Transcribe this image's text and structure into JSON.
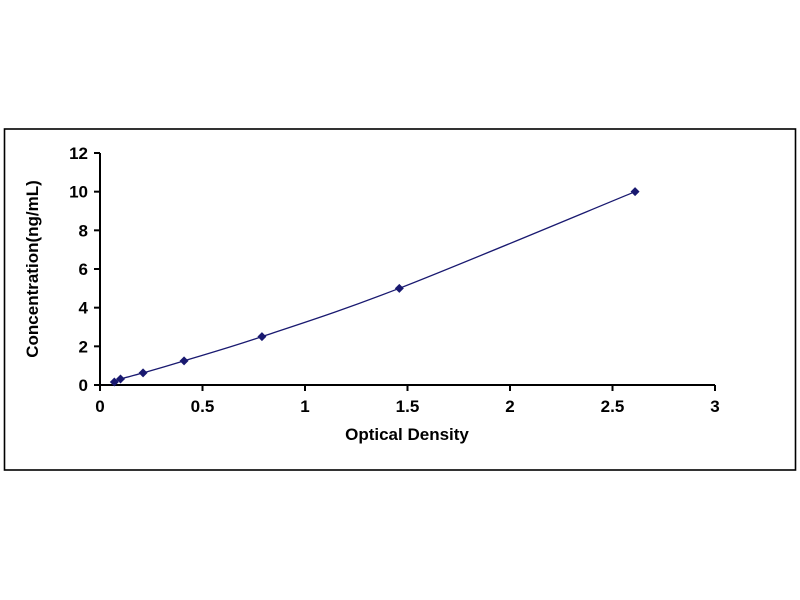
{
  "chart_data": {
    "type": "line",
    "title": "",
    "xlabel": "Optical Density",
    "ylabel": "Concentration(ng/mL)",
    "xlim": [
      0,
      3
    ],
    "ylim": [
      0,
      12
    ],
    "x_ticks": [
      "0",
      "0.5",
      "1",
      "1.5",
      "2",
      "2.5",
      "3"
    ],
    "x_tick_values": [
      0,
      0.5,
      1,
      1.5,
      2,
      2.5,
      3
    ],
    "y_ticks": [
      "0",
      "2",
      "4",
      "6",
      "8",
      "10",
      "12"
    ],
    "y_tick_values": [
      0,
      2,
      4,
      6,
      8,
      10,
      12
    ],
    "grid": false,
    "legend": "none",
    "line_color": "#191970",
    "marker_color": "#191970",
    "marker_shape": "diamond",
    "axis_color": "#000000",
    "border_color": "#000000",
    "points": [
      {
        "x": 0.07,
        "y": 0.156
      },
      {
        "x": 0.1,
        "y": 0.312
      },
      {
        "x": 0.21,
        "y": 0.625
      },
      {
        "x": 0.41,
        "y": 1.25
      },
      {
        "x": 0.79,
        "y": 2.5
      },
      {
        "x": 1.46,
        "y": 5.0
      },
      {
        "x": 2.61,
        "y": 10.0
      }
    ]
  }
}
